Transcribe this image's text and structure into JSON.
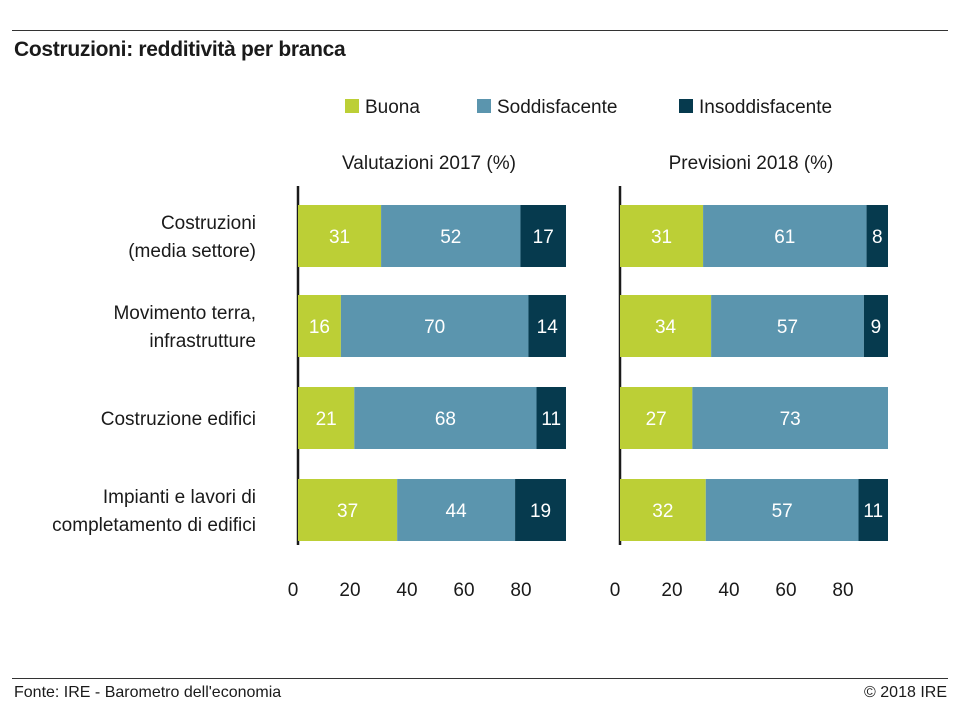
{
  "title": "Costruzioni: redditività per branca",
  "footer": {
    "source": "Fonte: IRE - Barometro dell'economia",
    "copyright": "© 2018 IRE"
  },
  "chart_data": {
    "type": "bar",
    "orientation": "horizontal",
    "stacked": true,
    "legend": {
      "placement": "top",
      "entries": [
        {
          "label": "Buona",
          "color": "#bccf36"
        },
        {
          "label": "Soddisfacente",
          "color": "#5b95ae"
        },
        {
          "label": "Insoddisfacente",
          "color": "#063a4e"
        }
      ]
    },
    "categories": [
      [
        "Costruzioni",
        "(media settore)"
      ],
      [
        "Movimento terra,",
        "infrastrutture"
      ],
      [
        "Costruzione edifici"
      ],
      [
        "Impianti e lavori di",
        "completamento di edifici"
      ]
    ],
    "xlim": [
      0,
      100
    ],
    "xticks": [
      0,
      20,
      40,
      60,
      80
    ],
    "grid": false,
    "panels": [
      {
        "title": "Valutazioni 2017 (%)",
        "series": [
          {
            "name": "Buona",
            "values": [
              31,
              16,
              21,
              37
            ]
          },
          {
            "name": "Soddisfacente",
            "values": [
              52,
              70,
              68,
              44
            ]
          },
          {
            "name": "Insoddisfacente",
            "values": [
              17,
              14,
              11,
              19
            ]
          }
        ]
      },
      {
        "title": "Previsioni 2018 (%)",
        "series": [
          {
            "name": "Buona",
            "values": [
              31,
              34,
              27,
              32
            ]
          },
          {
            "name": "Soddisfacente",
            "values": [
              61,
              57,
              73,
              57
            ]
          },
          {
            "name": "Insoddisfacente",
            "values": [
              8,
              9,
              0,
              11
            ]
          }
        ]
      }
    ]
  }
}
